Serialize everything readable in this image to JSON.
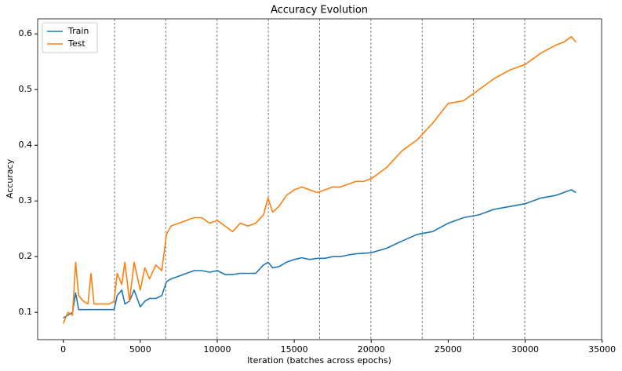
{
  "chart_data": {
    "type": "line",
    "title": "Accuracy Evolution",
    "x_label": "Iteration (batches across epochs)",
    "y_label": "Accuracy",
    "x": [
      0,
      300,
      600,
      800,
      1000,
      1300,
      1600,
      1800,
      2000,
      2500,
      3000,
      3300,
      3500,
      3800,
      4000,
      4300,
      4600,
      5000,
      5300,
      5600,
      6000,
      6400,
      6700,
      7000,
      7500,
      8000,
      8500,
      9000,
      9500,
      10000,
      10500,
      11000,
      11500,
      12000,
      12500,
      13000,
      13300,
      13600,
      14000,
      14500,
      15000,
      15500,
      16000,
      16500,
      17000,
      17500,
      18000,
      18500,
      19000,
      19500,
      20000,
      21000,
      22000,
      23000,
      24000,
      25000,
      26000,
      27000,
      28000,
      29000,
      30000,
      31000,
      32000,
      32500,
      33000,
      33300
    ],
    "series": [
      {
        "name": "Train",
        "color": "#1f77b4",
        "values": [
          0.09,
          0.095,
          0.1,
          0.135,
          0.105,
          0.105,
          0.105,
          0.105,
          0.105,
          0.105,
          0.105,
          0.105,
          0.13,
          0.14,
          0.115,
          0.12,
          0.14,
          0.11,
          0.12,
          0.125,
          0.125,
          0.13,
          0.155,
          0.16,
          0.165,
          0.17,
          0.175,
          0.175,
          0.172,
          0.175,
          0.168,
          0.168,
          0.17,
          0.17,
          0.17,
          0.185,
          0.19,
          0.18,
          0.182,
          0.19,
          0.195,
          0.198,
          0.195,
          0.197,
          0.197,
          0.2,
          0.2,
          0.203,
          0.205,
          0.206,
          0.207,
          0.215,
          0.228,
          0.24,
          0.245,
          0.26,
          0.27,
          0.275,
          0.285,
          0.29,
          0.295,
          0.305,
          0.31,
          0.315,
          0.32,
          0.315
        ]
      },
      {
        "name": "Test",
        "color": "#ff7f0e",
        "values": [
          0.08,
          0.1,
          0.095,
          0.19,
          0.13,
          0.12,
          0.115,
          0.17,
          0.115,
          0.115,
          0.115,
          0.12,
          0.17,
          0.15,
          0.19,
          0.12,
          0.19,
          0.14,
          0.18,
          0.16,
          0.185,
          0.175,
          0.24,
          0.255,
          0.26,
          0.265,
          0.27,
          0.27,
          0.26,
          0.265,
          0.255,
          0.245,
          0.26,
          0.255,
          0.26,
          0.275,
          0.305,
          0.28,
          0.29,
          0.31,
          0.32,
          0.325,
          0.32,
          0.315,
          0.32,
          0.325,
          0.325,
          0.33,
          0.335,
          0.335,
          0.34,
          0.36,
          0.39,
          0.41,
          0.44,
          0.475,
          0.48,
          0.5,
          0.52,
          0.535,
          0.545,
          0.565,
          0.58,
          0.585,
          0.595,
          0.585
        ]
      }
    ],
    "epoch_lines": [
      3330,
      6660,
      9990,
      13320,
      16650,
      19980,
      23310,
      26640,
      29970
    ],
    "xlim": [
      -1665,
      34965
    ],
    "ylim": [
      0.051,
      0.627
    ],
    "xticks": [
      0,
      5000,
      10000,
      15000,
      20000,
      25000,
      30000,
      35000
    ],
    "yticks": [
      0.1,
      0.2,
      0.3,
      0.4,
      0.5,
      0.6
    ],
    "legend": "upper left"
  }
}
